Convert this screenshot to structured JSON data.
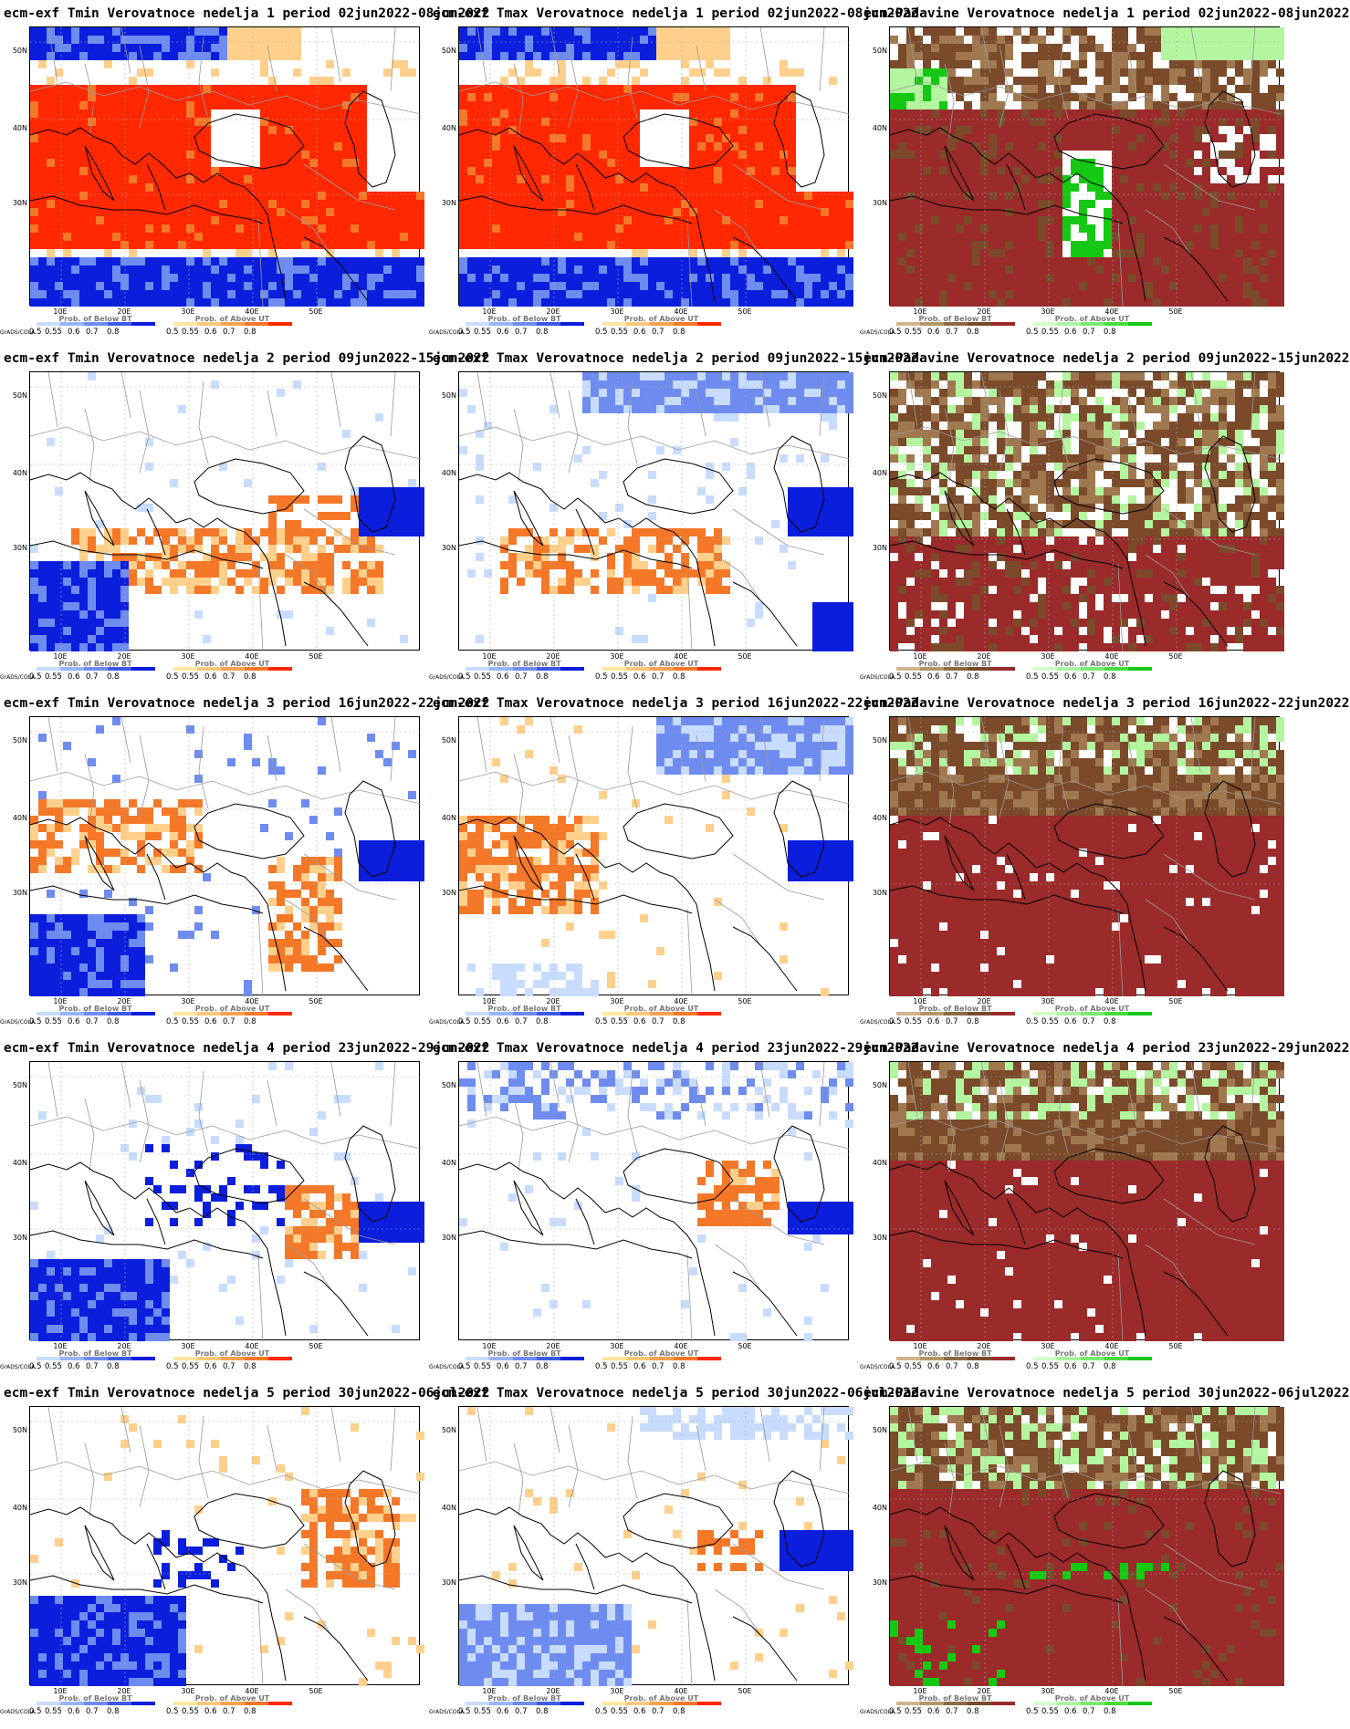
{
  "grads_label": "GrADS/COLA",
  "lat_labels": [
    "50N",
    "40N",
    "30N"
  ],
  "lon_labels": [
    "10E",
    "20E",
    "30E",
    "40E",
    "50E"
  ],
  "legends": {
    "temperature": [
      {
        "title": "Prob. of Below BT",
        "ticks": [
          "0.5",
          "0.55",
          "0.6",
          "0.7",
          "0.8"
        ],
        "colors": [
          "#c8dcff",
          "#96b4ff",
          "#6e8cf0",
          "#3c5ae6",
          "#0a1edc"
        ]
      },
      {
        "title": "Prob. of Above UT",
        "ticks": [
          "0.5",
          "0.55",
          "0.6",
          "0.7",
          "0.8"
        ],
        "colors": [
          "#ffe6a0",
          "#ffc878",
          "#faa050",
          "#f57828",
          "#ff2800"
        ]
      }
    ],
    "precipitation": [
      {
        "title": "Prob. of Below BT",
        "ticks": [
          "0.5",
          "0.55",
          "0.6",
          "0.7",
          "0.8"
        ],
        "colors": [
          "#d2b48c",
          "#b49664",
          "#8c6a42",
          "#7a4a2a",
          "#9b2a2a"
        ]
      },
      {
        "title": "Prob. of Above UT",
        "ticks": [
          "0.5",
          "0.55",
          "0.6",
          "0.7",
          "0.8"
        ],
        "colors": [
          "#d2ffc8",
          "#aaf5a0",
          "#78eb6e",
          "#46dc3c",
          "#14c814"
        ]
      }
    ]
  },
  "colors": {
    "cold_strong": "#0a1edc",
    "cold_mid": "#6e8cf0",
    "cold_light": "#c8dcff",
    "warm_strong": "#ff2800",
    "warm_mid": "#f57828",
    "warm_light": "#ffd08c",
    "dry_strong": "#9b2a2a",
    "dry_mid": "#7a4a2a",
    "dry_light": "#a07850",
    "wet_strong": "#14c814",
    "wet_light": "#b4f5a0",
    "border": "#999999",
    "coast": "#000000"
  },
  "rows": [
    {
      "panels": [
        {
          "title": "ecm-exf Tmin Verovatnoce nedelja 1 period 02jun2022-08jun2022",
          "kind": "temperature",
          "pattern": "t1"
        },
        {
          "title": "ecm-exf Tmax Verovatnoce nedelja 1 period 02jun2022-08jun2022",
          "kind": "temperature",
          "pattern": "t1"
        },
        {
          "title": "ecm-Padavine Verovatnoce nedelja 1 period 02jun2022-08jun2022",
          "kind": "precipitation",
          "pattern": "p1"
        }
      ]
    },
    {
      "panels": [
        {
          "title": "ecm-exf Tmin Verovatnoce nedelja 2 period 09jun2022-15jun2022",
          "kind": "temperature",
          "pattern": "t2"
        },
        {
          "title": "ecm-exf Tmax Verovatnoce nedelja 2 period 09jun2022-15jun2022",
          "kind": "temperature",
          "pattern": "t2b"
        },
        {
          "title": "ecm-Padavine Verovatnoce nedelja 2 period 09jun2022-15jun2022",
          "kind": "precipitation",
          "pattern": "p2"
        }
      ]
    },
    {
      "panels": [
        {
          "title": "ecm-exf Tmin Verovatnoce nedelja 3 period 16jun2022-22jun2022",
          "kind": "temperature",
          "pattern": "t3"
        },
        {
          "title": "ecm-exf Tmax Verovatnoce nedelja 3 period 16jun2022-22jun2022",
          "kind": "temperature",
          "pattern": "t3b"
        },
        {
          "title": "ecm-Padavine Verovatnoce nedelja 3 period 16jun2022-22jun2022",
          "kind": "precipitation",
          "pattern": "p3"
        }
      ]
    },
    {
      "panels": [
        {
          "title": "ecm-exf Tmin Verovatnoce nedelja 4 period 23jun2022-29jun2022",
          "kind": "temperature",
          "pattern": "t4"
        },
        {
          "title": "ecm-exf Tmax Verovatnoce nedelja 4 period 23jun2022-29jun2022",
          "kind": "temperature",
          "pattern": "t4b"
        },
        {
          "title": "ecm-Padavine Verovatnoce nedelja 4 period 23jun2022-29jun2022",
          "kind": "precipitation",
          "pattern": "p3"
        }
      ]
    },
    {
      "panels": [
        {
          "title": "ecm-exf Tmin Verovatnoce nedelja 5 period 30jun2022-06jul2022",
          "kind": "temperature",
          "pattern": "t5"
        },
        {
          "title": "ecm-exf Tmax Verovatnoce nedelja 5 period 30jun2022-06jul2022",
          "kind": "temperature",
          "pattern": "t5b"
        },
        {
          "title": "ecm-Padavine Verovatnoce nedelja 5 period 30jun2022-06jul2022",
          "kind": "precipitation",
          "pattern": "p5"
        }
      ]
    }
  ]
}
